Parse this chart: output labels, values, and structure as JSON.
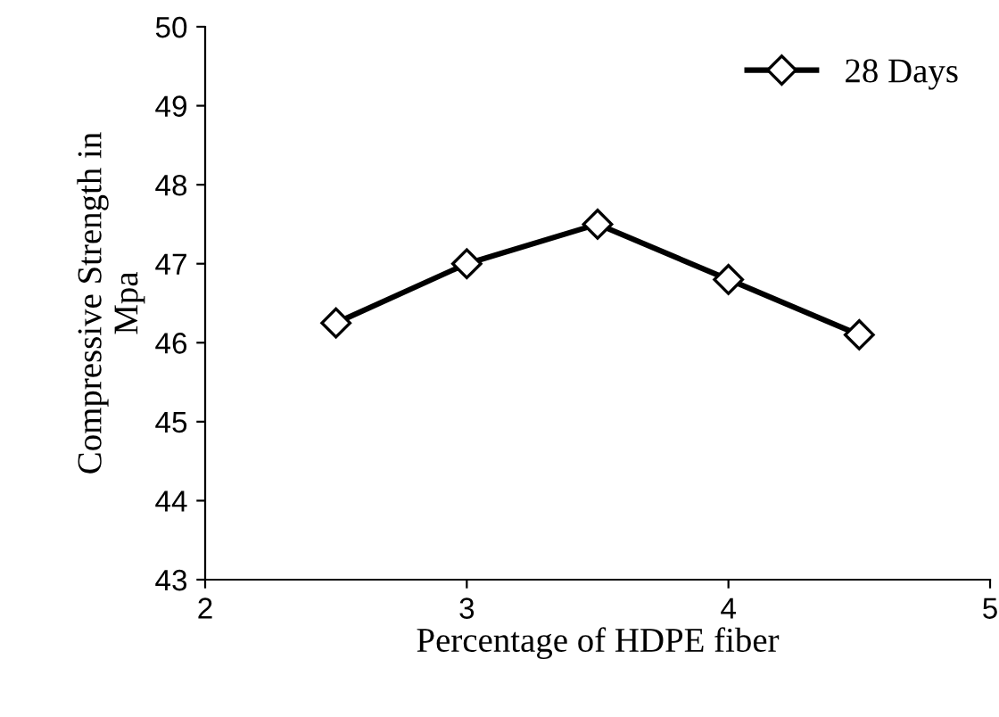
{
  "chart_data": {
    "type": "line",
    "xlabel": "Percentage of HDPE fiber",
    "ylabel": "Compressive Strength in\nMpa",
    "x": [
      2.5,
      3,
      3.5,
      4,
      4.5
    ],
    "series": [
      {
        "name": "28 Days",
        "color": "#000000",
        "values": [
          46.25,
          47.0,
          47.5,
          46.8,
          46.1
        ]
      }
    ],
    "xlim": [
      2,
      5
    ],
    "xticks": [
      2,
      3,
      4,
      5
    ],
    "ylim": [
      43,
      50
    ],
    "yticks": [
      43,
      44,
      45,
      46,
      47,
      48,
      49,
      50
    ],
    "grid": false,
    "legend": "top right",
    "marker": "diamond",
    "line_style": "solid"
  }
}
